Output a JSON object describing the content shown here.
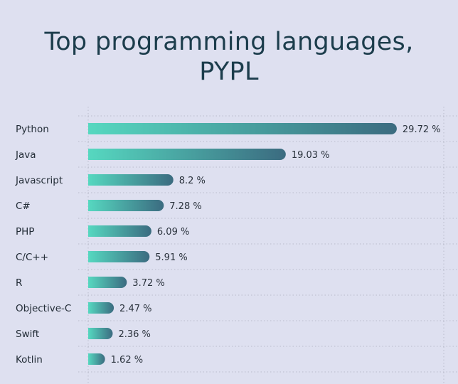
{
  "chart_data": {
    "type": "bar",
    "orientation": "horizontal",
    "title_lines": [
      "Top programming languages,",
      "PYPL"
    ],
    "categories": [
      "Python",
      "Java",
      "Javascript",
      "C#",
      "PHP",
      "C/C++",
      "R",
      "Objective-C",
      "Swift",
      "Kotlin"
    ],
    "values": [
      29.72,
      19.03,
      8.2,
      7.28,
      6.09,
      5.91,
      3.72,
      2.47,
      2.36,
      1.62
    ],
    "value_labels": [
      "29.72 %",
      "19.03 %",
      "8.2 %",
      "7.28 %",
      "6.09 %",
      "5.91 %",
      "3.72 %",
      "2.47 %",
      "2.36 %",
      "1.62 %"
    ],
    "xlabel": "",
    "ylabel": "",
    "grid": true,
    "colors": {
      "bar_start": "#56d8c0",
      "bar_end": "#3b6b80",
      "background": "#dee0f0",
      "title": "#1c3d4c"
    }
  }
}
